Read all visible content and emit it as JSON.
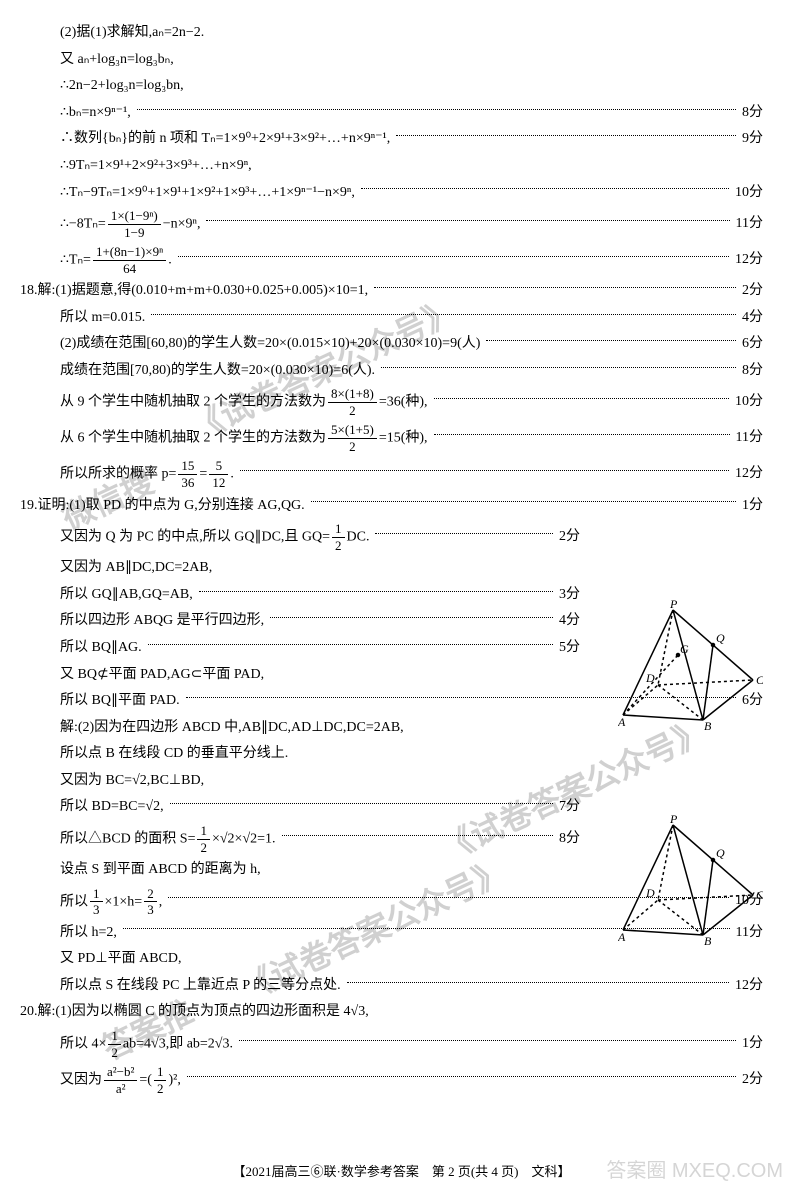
{
  "lines": [
    {
      "content": "(2)据(1)求解知,aₙ=2n−2.",
      "score": "",
      "indent": true
    },
    {
      "content": "又 aₙ+log₃n=log₃bₙ,",
      "score": "",
      "indent": true
    },
    {
      "content": "∴2n−2+log₃n=log₃bn,",
      "score": "",
      "indent": true
    },
    {
      "content": "∴bₙ=n×9ⁿ⁻¹,",
      "score": "8分",
      "indent": true,
      "dots": true
    },
    {
      "content": "∴数列{bₙ}的前 n 项和 Tₙ=1×9⁰+2×9¹+3×9²+…+n×9ⁿ⁻¹,",
      "score": "9分",
      "indent": true,
      "dots": true
    },
    {
      "content": "∴9Tₙ=1×9¹+2×9²+3×9³+…+n×9ⁿ,",
      "score": "",
      "indent": true
    },
    {
      "content": "∴Tₙ−9Tₙ=1×9⁰+1×9¹+1×9²+1×9³+…+1×9ⁿ⁻¹−n×9ⁿ,",
      "score": "10分",
      "indent": true,
      "dots": true
    },
    {
      "content": "∴−8Tₙ=",
      "frac1": {
        "num": "1×(1−9ⁿ)",
        "den": "1−9"
      },
      "content2": "−n×9ⁿ,",
      "score": "11分",
      "indent": true,
      "dots": true,
      "tall": true
    },
    {
      "content": "∴Tₙ=",
      "frac1": {
        "num": "1+(8n−1)×9ⁿ",
        "den": "64"
      },
      "content2": ".",
      "score": "12分",
      "indent": true,
      "dots": true,
      "tall": true
    },
    {
      "prefix": "18.",
      "content": "解:(1)据题意,得(0.010+m+m+0.030+0.025+0.005)×10=1,",
      "score": "2分",
      "dots": true
    },
    {
      "content": "所以 m=0.015.",
      "score": "4分",
      "indent": true,
      "dots": true
    },
    {
      "content": "(2)成绩在范围[60,80)的学生人数=20×(0.015×10)+20×(0.030×10)=9(人)",
      "score": "6分",
      "indent": true,
      "dots": true
    },
    {
      "content": "成绩在范围[70,80)的学生人数=20×(0.030×10)=6(人).",
      "score": "8分",
      "indent": true,
      "dots": true
    },
    {
      "content": "从 9 个学生中随机抽取 2 个学生的方法数为",
      "frac1": {
        "num": "8×(1+8)",
        "den": "2"
      },
      "content2": "=36(种),",
      "score": "10分",
      "indent": true,
      "dots": true,
      "tall": true
    },
    {
      "content": "从 6 个学生中随机抽取 2 个学生的方法数为",
      "frac1": {
        "num": "5×(1+5)",
        "den": "2"
      },
      "content2": "=15(种),",
      "score": "11分",
      "indent": true,
      "dots": true,
      "tall": true
    },
    {
      "content": "所以所求的概率 p=",
      "frac1": {
        "num": "15",
        "den": "36"
      },
      "content2a": "=",
      "frac2": {
        "num": "5",
        "den": "12"
      },
      "content2": ".",
      "score": "12分",
      "indent": true,
      "dots": true,
      "tall": true
    },
    {
      "prefix": "19.",
      "content": "证明:(1)取 PD 的中点为 G,分别连接 AG,QG.",
      "score": "1分",
      "dots": true
    },
    {
      "content": "又因为 Q 为 PC 的中点,所以 GQ∥DC,且 GQ=",
      "frac1": {
        "num": "1",
        "den": "2"
      },
      "content2": "DC.",
      "score": "2分",
      "indent": true,
      "dots": true,
      "short": true,
      "tall": true
    },
    {
      "content": "又因为 AB∥DC,DC=2AB,",
      "score": "",
      "indent": true
    },
    {
      "content": "所以 GQ∥AB,GQ=AB,",
      "score": "3分",
      "indent": true,
      "dots": true,
      "short": true
    },
    {
      "content": "所以四边形 ABQG 是平行四边形,",
      "score": "4分",
      "indent": true,
      "dots": true,
      "short": true
    },
    {
      "content": "所以 BQ∥AG.",
      "score": "5分",
      "indent": true,
      "dots": true,
      "short": true
    },
    {
      "content": "又 BQ⊄平面 PAD,AG⊂平面 PAD,",
      "score": "",
      "indent": true
    },
    {
      "content": "所以 BQ∥平面 PAD.",
      "score": "6分",
      "indent": true,
      "dots": true
    },
    {
      "content": "解:(2)因为在四边形 ABCD 中,AB∥DC,AD⊥DC,DC=2AB,",
      "score": "",
      "indent": true
    },
    {
      "content": "所以点 B 在线段 CD 的垂直平分线上.",
      "score": "",
      "indent": true
    },
    {
      "content": "又因为 BC=√2,BC⊥BD,",
      "score": "",
      "indent": true
    },
    {
      "content": "所以 BD=BC=√2,",
      "score": "7分",
      "indent": true,
      "dots": true,
      "short": true
    },
    {
      "content": "所以△BCD 的面积 S=",
      "frac1": {
        "num": "1",
        "den": "2"
      },
      "content2": "×√2×√2=1.",
      "score": "8分",
      "indent": true,
      "dots": true,
      "short": true,
      "tall": true
    },
    {
      "content": "设点 S 到平面 ABCD 的距离为 h,",
      "score": "",
      "indent": true
    },
    {
      "content": "所以",
      "frac1": {
        "num": "1",
        "den": "3"
      },
      "content2a": "×1×h=",
      "frac2": {
        "num": "2",
        "den": "3"
      },
      "content2": ",",
      "score": "10分",
      "indent": true,
      "dots": true,
      "tall": true
    },
    {
      "content": "所以 h=2,",
      "score": "11分",
      "indent": true,
      "dots": true
    },
    {
      "content": "又 PD⊥平面 ABCD,",
      "score": "",
      "indent": true
    },
    {
      "content": "所以点 S 在线段 PC 上靠近点 P 的三等分点处.",
      "score": "12分",
      "indent": true,
      "dots": true
    },
    {
      "prefix": "20.",
      "content": "解:(1)因为以椭圆 C 的顶点为顶点的四边形面积是 4√3,",
      "score": ""
    },
    {
      "content": "所以 4×",
      "frac1": {
        "num": "1",
        "den": "2"
      },
      "content2": "ab=4√3,即 ab=2√3.",
      "score": "1分",
      "indent": true,
      "dots": true,
      "tall": true
    },
    {
      "content": "又因为",
      "frac1": {
        "num": "a²−b²",
        "den": "a²"
      },
      "content2a": "=(",
      "frac2": {
        "num": "1",
        "den": "2"
      },
      "content2": ")²,",
      "score": "2分",
      "indent": true,
      "dots": true,
      "tall": true
    }
  ],
  "watermarks": {
    "wm1": "《试卷答案公众号》",
    "wm2": "微信搜",
    "wm3": "《试卷答案公众号》",
    "wm4": "《试卷答案公众号》",
    "wm5": "答案推"
  },
  "footer": "【2021届高三⑥联·数学参考答案　第 2 页(共 4 页)　文科】",
  "corner": "答案圈\nMXEQ.COM",
  "figures": {
    "fig1": {
      "labels": {
        "P": "P",
        "Q": "Q",
        "C": "C",
        "B": "B",
        "A": "A",
        "D": "D",
        "G": "G"
      }
    },
    "fig2": {
      "labels": {
        "P": "P",
        "Q": "Q",
        "C": "C",
        "B": "B",
        "A": "A",
        "D": "D"
      }
    }
  }
}
